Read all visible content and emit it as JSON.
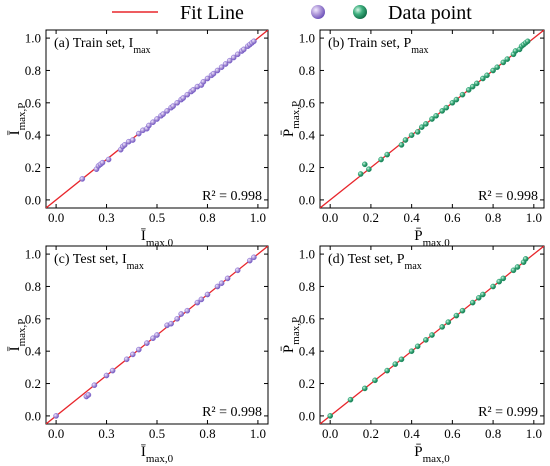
{
  "legend": {
    "fit_line_label": "Fit Line",
    "data_point_label": "Data point",
    "fit_line_color": "#e8262c",
    "train_color": "#7a5fd0",
    "test_color": "#1d9a6c"
  },
  "chart_data": [
    {
      "type": "scatter",
      "title": "(a) Train set, I_max",
      "xlabel": "Ī_max,0",
      "ylabel": "Ī_max,P",
      "xlim": [
        -0.05,
        1.05
      ],
      "ylim": [
        -0.05,
        1.05
      ],
      "xticks": [
        "0.0",
        "0.3",
        "0.5",
        "0.8",
        "1.0"
      ],
      "xtick_values": [
        0,
        0.25,
        0.5,
        0.75,
        1.0
      ],
      "yticks": [
        "0.0",
        "0.2",
        "0.4",
        "0.6",
        "0.8",
        "1.0"
      ],
      "ytick_values": [
        0,
        0.2,
        0.4,
        0.6,
        0.8,
        1.0
      ],
      "r2": "R² = 0.998",
      "fit_line": [
        [
          -0.05,
          -0.05
        ],
        [
          1.05,
          1.05
        ]
      ],
      "marker_color": "#7a5fd0",
      "x": [
        0.13,
        0.2,
        0.21,
        0.22,
        0.23,
        0.26,
        0.32,
        0.33,
        0.34,
        0.36,
        0.38,
        0.41,
        0.43,
        0.45,
        0.46,
        0.48,
        0.5,
        0.52,
        0.53,
        0.55,
        0.57,
        0.58,
        0.6,
        0.62,
        0.63,
        0.65,
        0.67,
        0.68,
        0.7,
        0.72,
        0.73,
        0.75,
        0.77,
        0.78,
        0.8,
        0.82,
        0.84,
        0.86,
        0.88,
        0.9,
        0.92,
        0.93,
        0.95,
        0.96,
        0.97,
        0.98
      ],
      "y": [
        0.13,
        0.19,
        0.21,
        0.22,
        0.23,
        0.25,
        0.31,
        0.33,
        0.34,
        0.36,
        0.37,
        0.41,
        0.43,
        0.44,
        0.46,
        0.48,
        0.5,
        0.52,
        0.53,
        0.55,
        0.57,
        0.58,
        0.6,
        0.62,
        0.63,
        0.65,
        0.67,
        0.68,
        0.7,
        0.71,
        0.73,
        0.75,
        0.77,
        0.78,
        0.8,
        0.82,
        0.84,
        0.86,
        0.88,
        0.9,
        0.92,
        0.93,
        0.95,
        0.96,
        0.97,
        0.98
      ]
    },
    {
      "type": "scatter",
      "title": "(b) Train set, P_max",
      "xlabel": "P̄_max,0",
      "ylabel": "P̄_max,P",
      "xlim": [
        -0.05,
        1.05
      ],
      "ylim": [
        -0.05,
        1.05
      ],
      "xticks": [
        "0.0",
        "0.2",
        "0.4",
        "0.6",
        "0.8",
        "1.0"
      ],
      "xtick_values": [
        0,
        0.2,
        0.4,
        0.6,
        0.8,
        1.0
      ],
      "yticks": [
        "0.0",
        "0.2",
        "0.4",
        "0.6",
        "0.8",
        "1.0"
      ],
      "ytick_values": [
        0,
        0.2,
        0.4,
        0.6,
        0.8,
        1.0
      ],
      "r2": "R² = 0.998",
      "fit_line": [
        [
          -0.05,
          -0.05
        ],
        [
          1.05,
          1.05
        ]
      ],
      "marker_color": "#1d9a6c",
      "x": [
        0.15,
        0.17,
        0.19,
        0.25,
        0.28,
        0.35,
        0.37,
        0.4,
        0.43,
        0.45,
        0.47,
        0.5,
        0.52,
        0.55,
        0.57,
        0.6,
        0.62,
        0.65,
        0.68,
        0.7,
        0.72,
        0.75,
        0.77,
        0.8,
        0.82,
        0.85,
        0.87,
        0.9,
        0.91,
        0.93,
        0.94,
        0.95,
        0.96,
        0.97
      ],
      "y": [
        0.16,
        0.22,
        0.19,
        0.25,
        0.28,
        0.34,
        0.37,
        0.4,
        0.42,
        0.45,
        0.47,
        0.5,
        0.52,
        0.55,
        0.57,
        0.6,
        0.62,
        0.65,
        0.68,
        0.7,
        0.72,
        0.75,
        0.77,
        0.8,
        0.82,
        0.85,
        0.87,
        0.9,
        0.92,
        0.93,
        0.95,
        0.96,
        0.97,
        0.98
      ]
    },
    {
      "type": "scatter",
      "title": "(c) Test set, I_max",
      "xlabel": "Ī_max,0",
      "ylabel": "Ī_max,P",
      "xlim": [
        -0.05,
        1.05
      ],
      "ylim": [
        -0.05,
        1.05
      ],
      "xticks": [
        "0.0",
        "0.3",
        "0.5",
        "0.8",
        "1.0"
      ],
      "xtick_values": [
        0,
        0.25,
        0.5,
        0.75,
        1.0
      ],
      "yticks": [
        "0.0",
        "0.2",
        "0.4",
        "0.6",
        "0.8",
        "1.0"
      ],
      "ytick_values": [
        0,
        0.2,
        0.4,
        0.6,
        0.8,
        1.0
      ],
      "r2": "R² = 0.998",
      "fit_line": [
        [
          -0.05,
          -0.05
        ],
        [
          1.05,
          1.05
        ]
      ],
      "marker_color": "#7a5fd0",
      "x": [
        0.0,
        0.15,
        0.16,
        0.19,
        0.25,
        0.28,
        0.35,
        0.38,
        0.41,
        0.45,
        0.48,
        0.5,
        0.55,
        0.57,
        0.6,
        0.62,
        0.65,
        0.7,
        0.72,
        0.75,
        0.8,
        0.82,
        0.85,
        0.9,
        0.96,
        0.98
      ],
      "y": [
        0.0,
        0.12,
        0.13,
        0.19,
        0.25,
        0.28,
        0.35,
        0.38,
        0.41,
        0.45,
        0.48,
        0.5,
        0.56,
        0.57,
        0.6,
        0.63,
        0.65,
        0.7,
        0.72,
        0.75,
        0.8,
        0.82,
        0.85,
        0.9,
        0.96,
        0.98
      ]
    },
    {
      "type": "scatter",
      "title": "(d) Test set, P_max",
      "xlabel": "P̄_max,0",
      "ylabel": "P̄_max,P",
      "xlim": [
        -0.05,
        1.05
      ],
      "ylim": [
        -0.05,
        1.05
      ],
      "xticks": [
        "0.0",
        "0.2",
        "0.4",
        "0.6",
        "0.8",
        "1.0"
      ],
      "xtick_values": [
        0,
        0.2,
        0.4,
        0.6,
        0.8,
        1.0
      ],
      "yticks": [
        "0.0",
        "0.2",
        "0.4",
        "0.6",
        "0.8",
        "1.0"
      ],
      "ytick_values": [
        0,
        0.2,
        0.4,
        0.6,
        0.8,
        1.0
      ],
      "r2": "R² = 0.999",
      "fit_line": [
        [
          -0.05,
          -0.05
        ],
        [
          1.05,
          1.05
        ]
      ],
      "marker_color": "#1d9a6c",
      "x": [
        0.0,
        0.1,
        0.17,
        0.22,
        0.28,
        0.32,
        0.35,
        0.4,
        0.43,
        0.47,
        0.5,
        0.55,
        0.58,
        0.62,
        0.65,
        0.7,
        0.73,
        0.75,
        0.8,
        0.83,
        0.85,
        0.9,
        0.92,
        0.95,
        0.96
      ],
      "y": [
        0.0,
        0.1,
        0.17,
        0.22,
        0.28,
        0.32,
        0.35,
        0.4,
        0.43,
        0.47,
        0.5,
        0.55,
        0.58,
        0.62,
        0.65,
        0.7,
        0.73,
        0.75,
        0.8,
        0.83,
        0.85,
        0.9,
        0.92,
        0.95,
        0.97
      ]
    }
  ]
}
